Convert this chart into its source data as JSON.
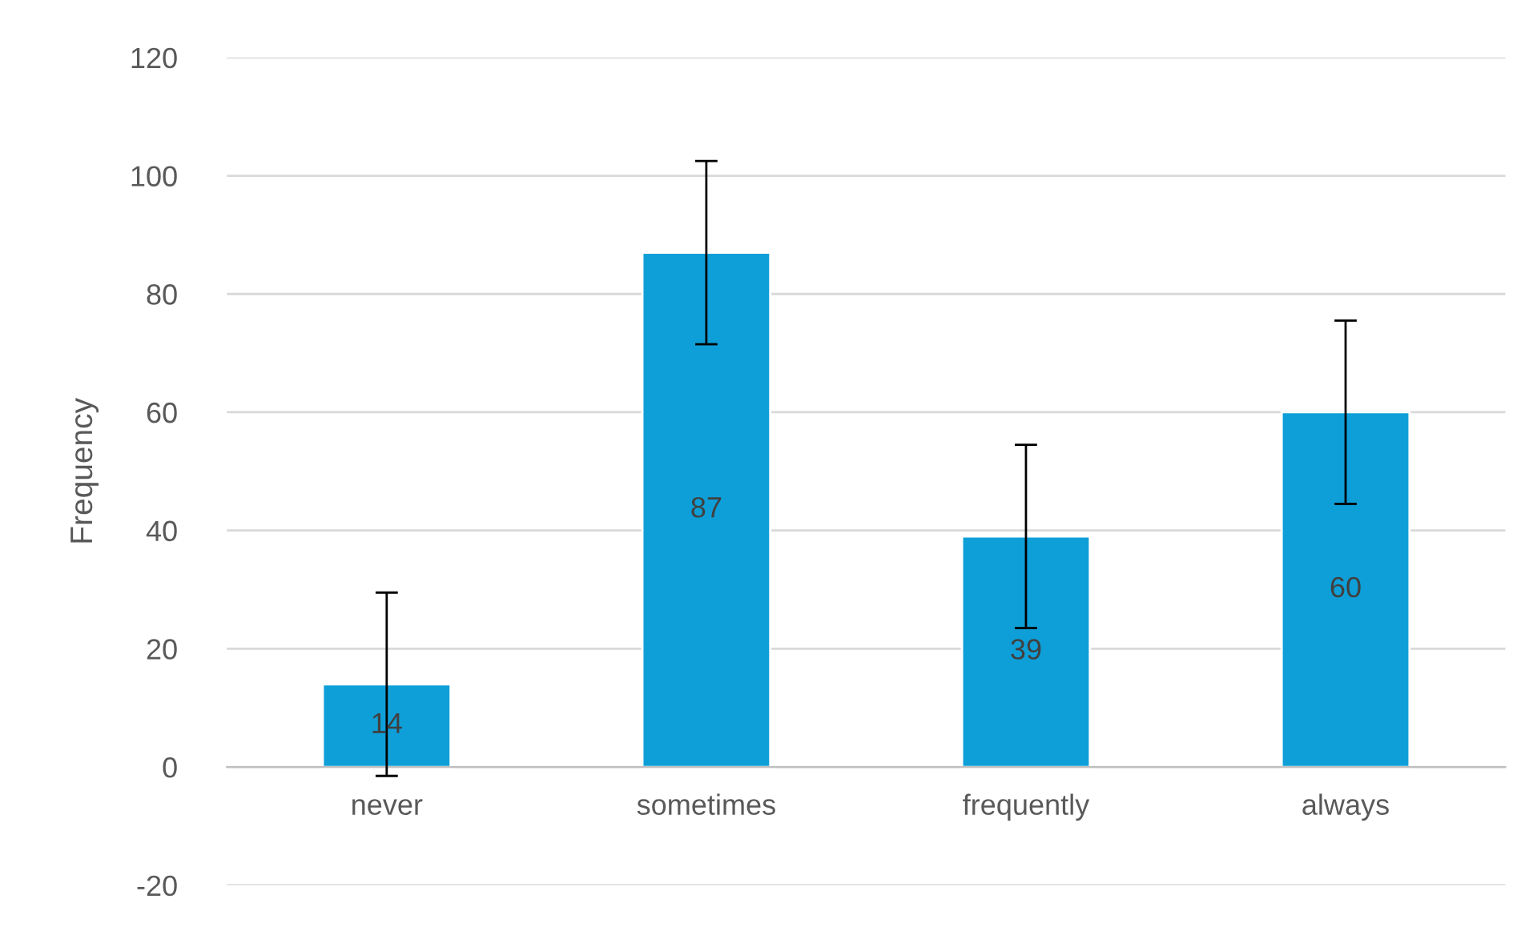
{
  "chart_data": {
    "type": "bar",
    "ylabel": "Frequency",
    "categories": [
      "never",
      "sometimes",
      "frequently",
      "always"
    ],
    "values": [
      14,
      87,
      39,
      60
    ],
    "errors": [
      15.5,
      15.5,
      15.5,
      15.5
    ],
    "color": "#0e9fd8",
    "ylim": [
      -20,
      120
    ],
    "yticks": [
      -20,
      0,
      20,
      40,
      60,
      80,
      100,
      120
    ],
    "grid": "y",
    "data_labels": true
  }
}
